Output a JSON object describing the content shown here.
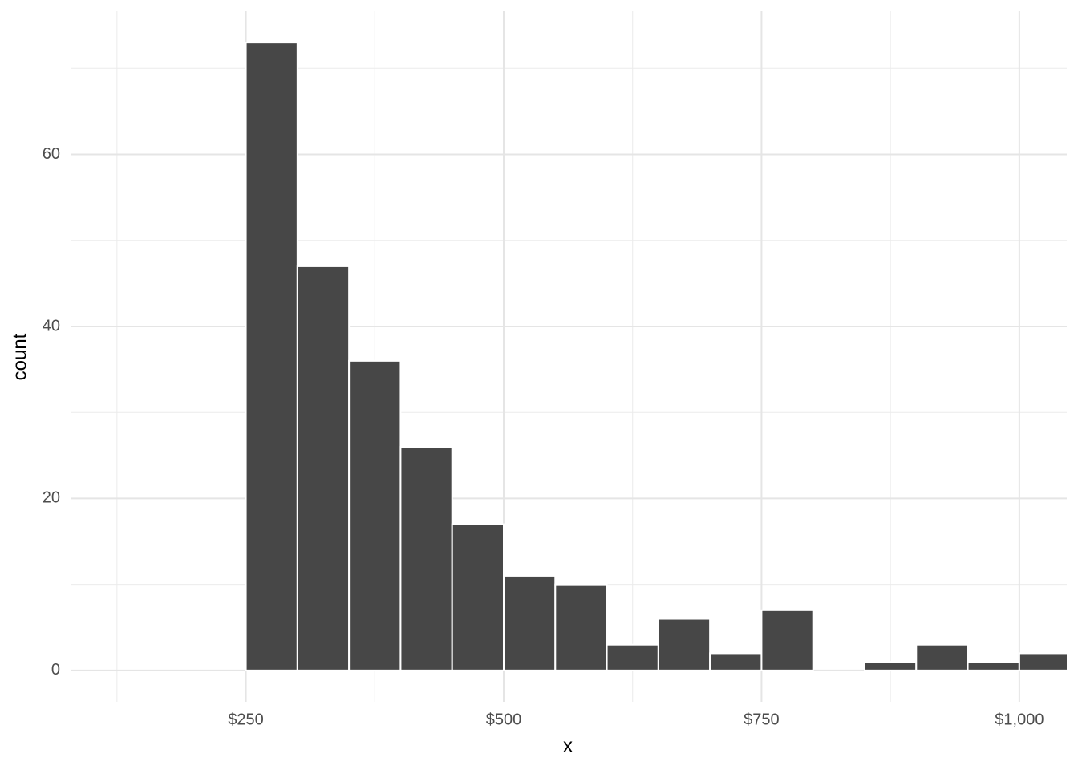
{
  "chart_data": {
    "type": "histogram",
    "x_label": "x",
    "y_label": "count",
    "bins": [
      250,
      300,
      350,
      400,
      450,
      500,
      550,
      600,
      650,
      700,
      750,
      800,
      850,
      900,
      950,
      1000,
      1050
    ],
    "counts": [
      73,
      47,
      36,
      26,
      17,
      11,
      10,
      3,
      6,
      2,
      7,
      0,
      1,
      3,
      1,
      2
    ],
    "color": "#474747",
    "xlim": [
      80,
      1046
    ],
    "ylim": [
      -3.65,
      76.65
    ],
    "xticks": [
      {
        "value": 250,
        "label": "$250"
      },
      {
        "value": 500,
        "label": "$500"
      },
      {
        "value": 750,
        "label": "$750"
      },
      {
        "value": 1000,
        "label": "$1,000"
      }
    ],
    "yticks": [
      0,
      20,
      40,
      60
    ],
    "x_minor_ticks": [
      125,
      375,
      625,
      875
    ],
    "y_minor_ticks": [
      10,
      30,
      50,
      70
    ],
    "grid": true
  }
}
